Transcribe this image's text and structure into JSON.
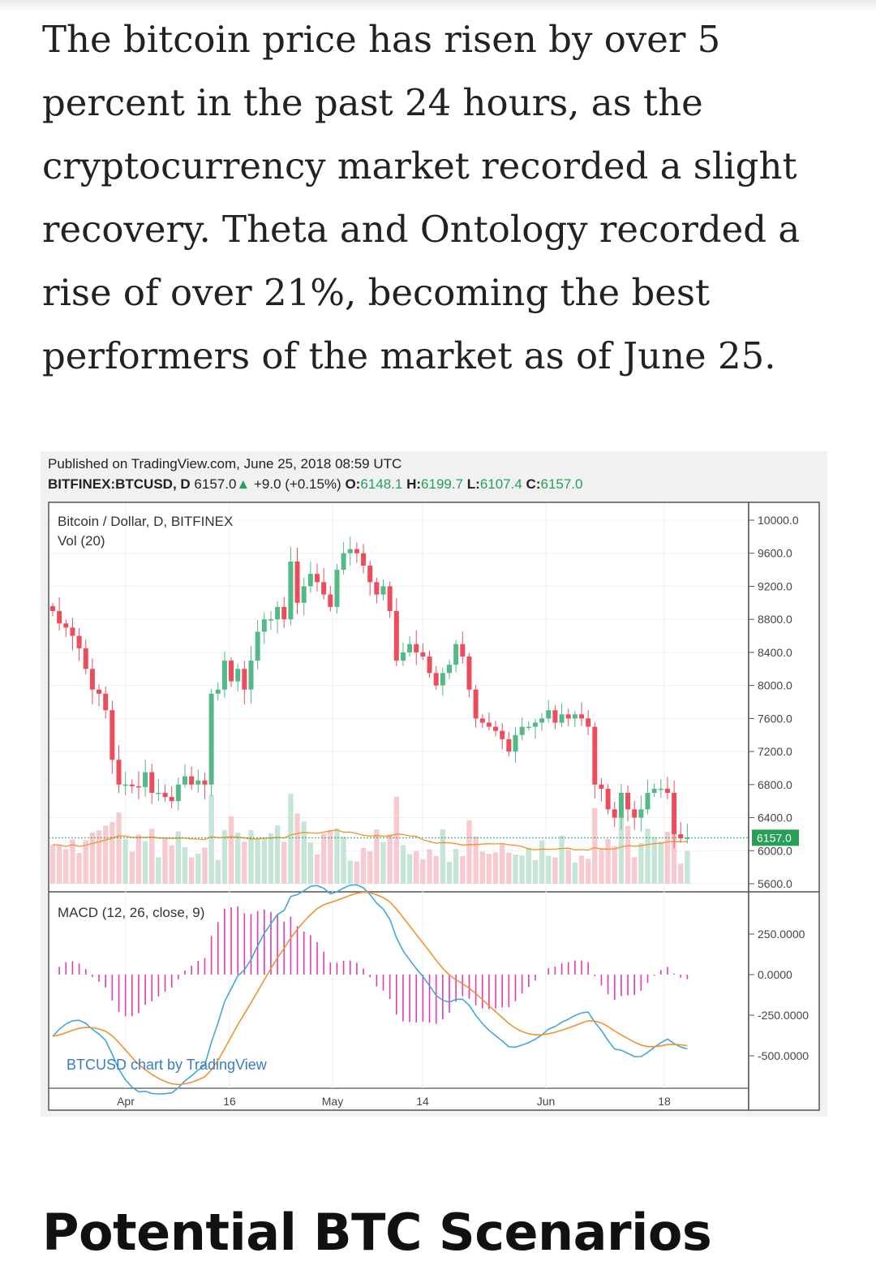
{
  "article": {
    "paragraph": "The bitcoin price has risen by over 5 percent in the past 24 hours, as the cryptocurrency market recorded a slight recovery. Theta and Ontology recorded a rise of over 21%, becoming the best performers of the market as of June 25."
  },
  "chart_header": {
    "published": "Published on TradingView.com, June 25, 2018 08:59 UTC",
    "symbol": "BITFINEX:BTCUSD, D",
    "last": "6157.0",
    "change_arrow": "▲",
    "change": "+9.0 (+0.15%)",
    "o_label": "O:",
    "o": "6148.1",
    "h_label": "H:",
    "h": "6199.7",
    "l_label": "L:",
    "l": "6107.4",
    "c_label": "C:",
    "c": "6157.0"
  },
  "chart_data": [
    {
      "type": "candlestick",
      "title": "Bitcoin / Dollar, D, BITFINEX",
      "volume_label": "Vol (20)",
      "y_ticks": [
        "10000.0",
        "9600.0",
        "9200.0",
        "8800.0",
        "8400.0",
        "8000.0",
        "7600.0",
        "7200.0",
        "6800.0",
        "6400.0",
        "6000.0",
        "5600.0"
      ],
      "ylim": [
        5600,
        10000
      ],
      "last_price_label": "6157.0",
      "x_ticks": [
        "Apr",
        "16",
        "May",
        "14",
        "Jun",
        "18"
      ],
      "close_values": [
        8900,
        8750,
        8700,
        8600,
        8450,
        8200,
        7950,
        7900,
        7700,
        7100,
        6800,
        6800,
        6780,
        6770,
        6950,
        6700,
        6700,
        6650,
        6600,
        6800,
        6900,
        6800,
        6850,
        6800,
        7900,
        7950,
        8300,
        8050,
        8200,
        7950,
        8300,
        8650,
        8800,
        8800,
        8950,
        8800,
        9500,
        9000,
        9200,
        9350,
        9250,
        9100,
        8950,
        9400,
        9600,
        9650,
        9600,
        9450,
        9250,
        9100,
        9200,
        8900,
        8300,
        8400,
        8500,
        8400,
        8350,
        8150,
        8000,
        8150,
        8250,
        8500,
        8350,
        7950,
        7600,
        7550,
        7500,
        7450,
        7350,
        7200,
        7400,
        7500,
        7500,
        7550,
        7600,
        7700,
        7550,
        7650,
        7600,
        7650,
        7600,
        7500,
        6800,
        6750,
        6500,
        6400,
        6700,
        6500,
        6400,
        6500,
        6700,
        6750,
        6750,
        6700,
        6200,
        6150,
        6157
      ],
      "macd_label": "MACD (12, 26, close, 9)",
      "macd_ticks": [
        "250.0000",
        "0.0000",
        "-250.0000",
        "-500.0000"
      ],
      "watermark": "BTCUSD chart by TradingView"
    }
  ],
  "heading": "Potential BTC Scenarios",
  "colors": {
    "up": "#53b987",
    "down": "#eb4d5c",
    "macd": "#3fa8e0",
    "signal": "#f0922f",
    "hist": "#e23bb5"
  }
}
